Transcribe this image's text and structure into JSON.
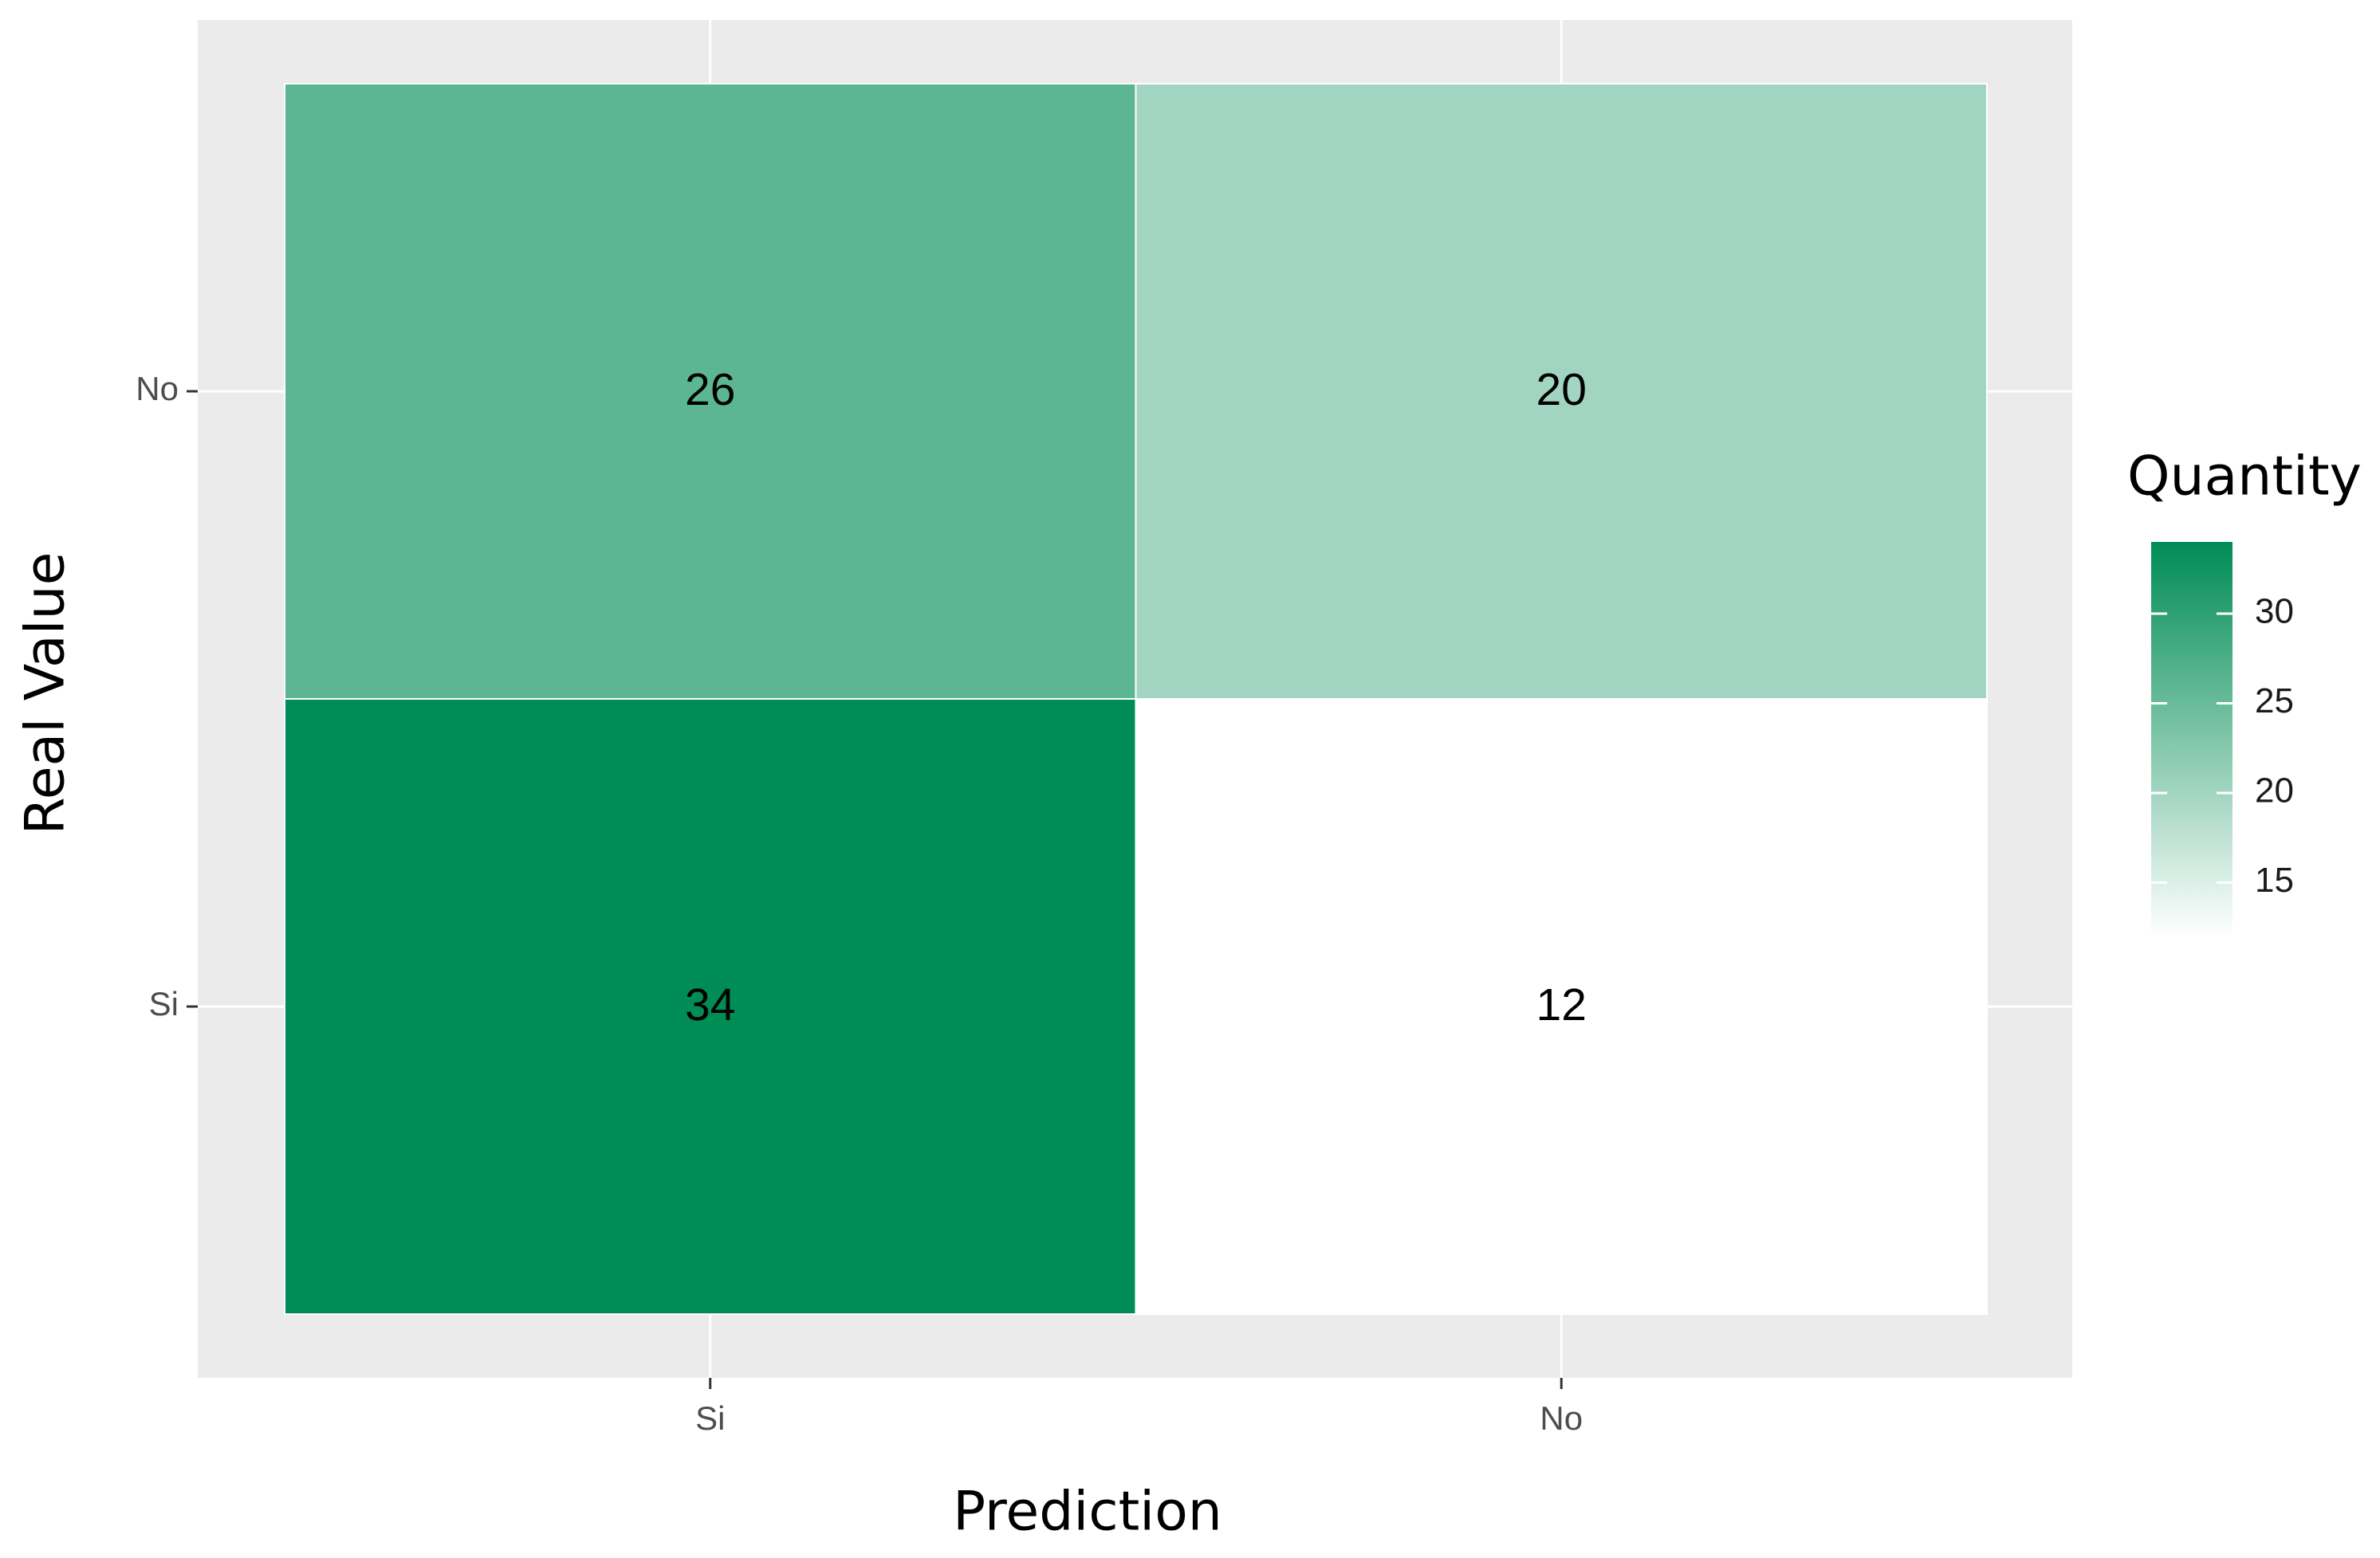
{
  "chart_data": {
    "type": "heatmap",
    "x_label": "Prediction",
    "y_label": "Real Value",
    "x_categories": [
      "Si",
      "No"
    ],
    "y_categories": [
      "Si",
      "No"
    ],
    "values": [
      [
        34,
        12
      ],
      [
        26,
        20
      ]
    ],
    "legend_title": "Quantity",
    "low_color": "#ffffff",
    "high_color": "#008c55",
    "clim": [
      12,
      34
    ],
    "cticks": [
      15,
      20,
      25,
      30
    ]
  }
}
